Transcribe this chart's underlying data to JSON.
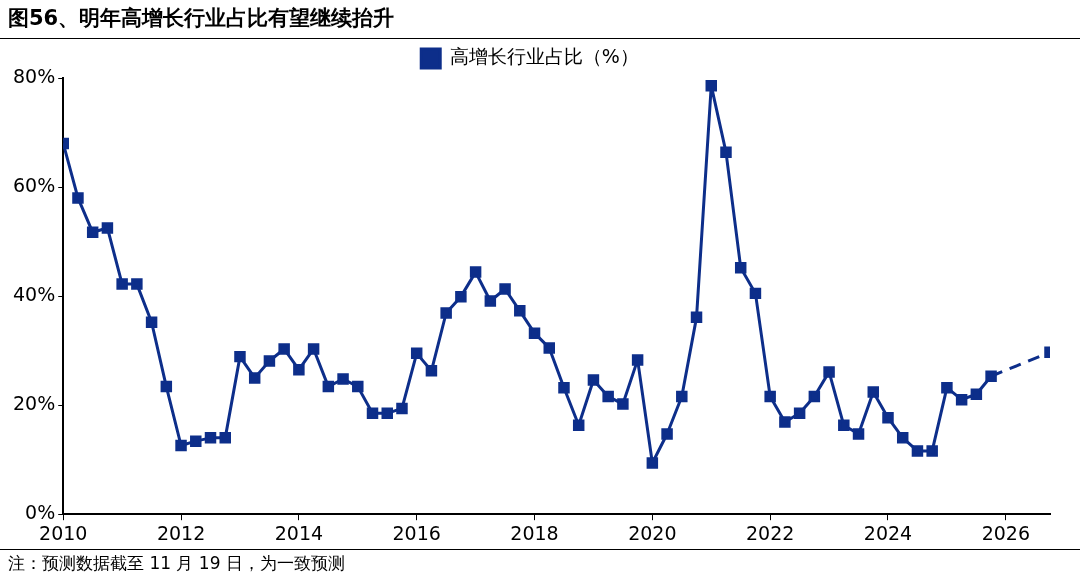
{
  "chart_data": {
    "type": "line",
    "title": "图56、明年高增长行业占比有望继续抬升",
    "x": [
      2010,
      2010.25,
      2010.5,
      2010.75,
      2011,
      2011.25,
      2011.5,
      2011.75,
      2012,
      2012.25,
      2012.5,
      2012.75,
      2013,
      2013.25,
      2013.5,
      2013.75,
      2014,
      2014.25,
      2014.5,
      2014.75,
      2015,
      2015.25,
      2015.5,
      2015.75,
      2016,
      2016.25,
      2016.5,
      2016.75,
      2017,
      2017.25,
      2017.5,
      2017.75,
      2018,
      2018.25,
      2018.5,
      2018.75,
      2019,
      2019.25,
      2019.5,
      2019.75,
      2020,
      2020.25,
      2020.5,
      2020.75,
      2021,
      2021.25,
      2021.5,
      2021.75,
      2022,
      2022.25,
      2022.5,
      2022.75,
      2023,
      2023.25,
      2023.5,
      2023.75,
      2024,
      2024.25,
      2024.5,
      2024.75,
      2025,
      2025.25,
      2025.5,
      2025.75
    ],
    "series": [
      {
        "name": "高增长行业占比（%）",
        "color": "#0d2e8a",
        "line_style": "solid",
        "values": [
          68.0,
          58.0,
          51.7,
          52.5,
          42.2,
          42.2,
          35.2,
          23.4,
          12.6,
          13.4,
          14.0,
          14.0,
          28.9,
          25.0,
          28.1,
          30.3,
          26.5,
          30.3,
          23.4,
          24.8,
          23.4,
          18.5,
          18.5,
          19.4,
          29.5,
          26.3,
          36.9,
          39.9,
          44.4,
          39.1,
          41.3,
          37.3,
          33.2,
          30.5,
          23.2,
          16.3,
          24.6,
          21.6,
          20.2,
          28.3,
          9.4,
          14.7,
          21.6,
          36.1,
          78.6,
          66.4,
          45.2,
          40.5,
          21.6,
          16.9,
          18.5,
          21.6,
          26.1,
          16.3,
          14.7,
          22.4,
          17.7,
          14.0,
          11.6,
          11.6,
          23.2,
          21.0,
          22.0,
          25.3
        ]
      },
      {
        "color": "#0d2e8a",
        "line_style": "dashed",
        "x": [
          2025.75,
          2026.75
        ],
        "values": [
          25.3,
          29.7
        ]
      }
    ],
    "xlim": [
      2010,
      2026.75
    ],
    "xticks": [
      2010,
      2012,
      2014,
      2016,
      2018,
      2020,
      2022,
      2024,
      2026
    ],
    "ylim": [
      0,
      80
    ],
    "yticks": [
      {
        "value": 0,
        "label": "0%"
      },
      {
        "value": 20,
        "label": "20%"
      },
      {
        "value": 40,
        "label": "40%"
      },
      {
        "value": 60,
        "label": "60%"
      },
      {
        "value": 80,
        "label": "80%"
      }
    ],
    "marker": "square",
    "legend": "top",
    "annotations": [
      "注：预测数据截至 11 月 19 日，为一致预测"
    ]
  }
}
